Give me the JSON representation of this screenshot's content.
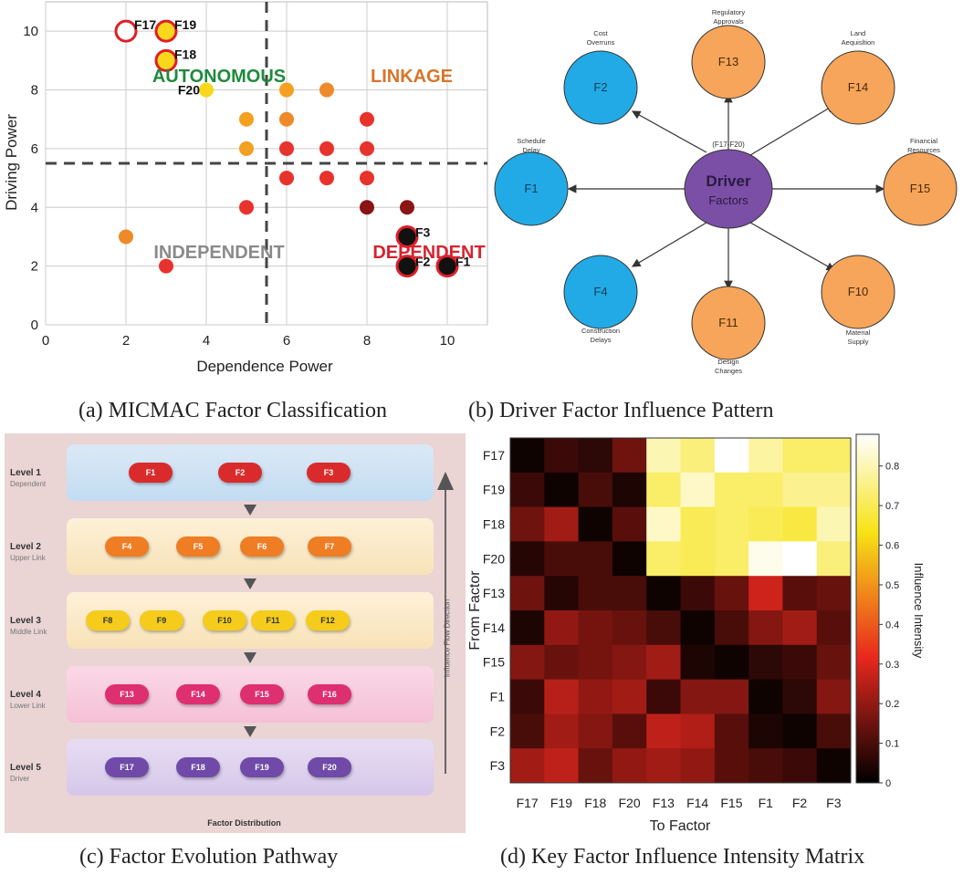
{
  "colors": {
    "red": "#e8322c",
    "orange": "#ef8a2a",
    "yellow": "#f7d81d",
    "amber": "#f4a020",
    "darkred": "#8b1414",
    "black": "#111111",
    "blue": "#22aae6",
    "purple": "#7b4fa6",
    "pink": "#e6337a",
    "green": "#1f8a3d",
    "linkage": "#d8742a",
    "gray": "#888888",
    "dependent": "#d7232f"
  },
  "panel_a": {
    "caption": "(a) MICMAC Factor Classification",
    "quadrants": {
      "autonomous": "AUTONOMOUS",
      "linkage": "LINKAGE",
      "independent": "INDEPENDENT",
      "dependent": "DEPENDENT"
    }
  },
  "panel_b": {
    "caption": "(b) Driver Factor Influence Pattern",
    "center": {
      "title": "Driver",
      "subtitle": "Factors",
      "note": "(F17-F20)"
    },
    "nodes": [
      {
        "id": "F2",
        "label": "Cost\nOverruns",
        "color": "blue"
      },
      {
        "id": "F13",
        "label": "Regulatory\nApprovals",
        "color": "orange"
      },
      {
        "id": "F14",
        "label": "Land\nAequisltion",
        "color": "orange"
      },
      {
        "id": "F15",
        "label": "Financial\nResources",
        "color": "orange"
      },
      {
        "id": "F10",
        "label": "Material\nSupply",
        "color": "orange"
      },
      {
        "id": "F11",
        "label": "Design\nChanges",
        "color": "orange"
      },
      {
        "id": "F4",
        "label": "Construction\nDelays",
        "color": "blue"
      },
      {
        "id": "F1",
        "label": "Schedule\nDelay",
        "color": "blue"
      }
    ]
  },
  "panel_c": {
    "caption": "(c) Factor Evolution Pathway",
    "footer": "Factor Distribution",
    "flow_label": "Influence Flow Direction",
    "levels": [
      {
        "name": "Level 1",
        "sub": "Dependent",
        "factors": [
          "F1",
          "F2",
          "F3"
        ]
      },
      {
        "name": "Level 2",
        "sub": "Upper Link",
        "factors": [
          "F4",
          "F5",
          "F6",
          "F7"
        ]
      },
      {
        "name": "Level 3",
        "sub": "Middle Link",
        "factors": [
          "F8",
          "F9",
          "F10",
          "F11",
          "F12"
        ]
      },
      {
        "name": "Level 4",
        "sub": "Lower Link",
        "factors": [
          "F13",
          "F14",
          "F15",
          "F16"
        ]
      },
      {
        "name": "Level 5",
        "sub": "Driver",
        "factors": [
          "F17",
          "F18",
          "F19",
          "F20"
        ]
      }
    ]
  },
  "panel_d": {
    "caption": "(d) Key Factor Influence Intensity Matrix"
  },
  "chart_data": [
    {
      "type": "scatter",
      "title": "",
      "xlabel": "Dependence Power",
      "ylabel": "Driving Power",
      "xlim": [
        0,
        11
      ],
      "ylim": [
        0,
        11
      ],
      "xticks": [
        0,
        2,
        4,
        6,
        8,
        10
      ],
      "yticks": [
        0,
        2,
        4,
        6,
        8,
        10
      ],
      "thresholds": {
        "x": 5.5,
        "y": 5.5
      },
      "grid": true,
      "points": [
        {
          "x": 2,
          "y": 10,
          "label": "F17",
          "color": "white",
          "ring": true
        },
        {
          "x": 3,
          "y": 10,
          "label": "F19",
          "color": "yellow",
          "ring": true
        },
        {
          "x": 3,
          "y": 9,
          "label": "F18",
          "color": "yellow",
          "ring": true
        },
        {
          "x": 4,
          "y": 8,
          "label": "F20",
          "color": "yellow"
        },
        {
          "x": 6,
          "y": 8,
          "color": "amber"
        },
        {
          "x": 7,
          "y": 8,
          "color": "orange"
        },
        {
          "x": 5,
          "y": 7,
          "color": "amber"
        },
        {
          "x": 6,
          "y": 7,
          "color": "orange"
        },
        {
          "x": 8,
          "y": 7,
          "color": "red"
        },
        {
          "x": 5,
          "y": 6,
          "color": "amber"
        },
        {
          "x": 6,
          "y": 6,
          "color": "red"
        },
        {
          "x": 7,
          "y": 6,
          "color": "red"
        },
        {
          "x": 8,
          "y": 6,
          "color": "red"
        },
        {
          "x": 6,
          "y": 5,
          "color": "red"
        },
        {
          "x": 7,
          "y": 5,
          "color": "red"
        },
        {
          "x": 8,
          "y": 5,
          "color": "red"
        },
        {
          "x": 5,
          "y": 4,
          "color": "red"
        },
        {
          "x": 8,
          "y": 4,
          "color": "darkred"
        },
        {
          "x": 9,
          "y": 4,
          "color": "darkred"
        },
        {
          "x": 2,
          "y": 3,
          "color": "orange"
        },
        {
          "x": 3,
          "y": 2,
          "color": "red"
        },
        {
          "x": 9,
          "y": 3,
          "label": "F3",
          "color": "black",
          "ring": true
        },
        {
          "x": 9,
          "y": 2,
          "label": "F2",
          "color": "black",
          "ring": true
        },
        {
          "x": 10,
          "y": 2,
          "label": "F1",
          "color": "black",
          "ring": true
        }
      ]
    },
    {
      "type": "heatmap",
      "xlabel": "To Factor",
      "ylabel": "From Factor",
      "colorbar_label": "Influence Intensity",
      "colorbar_ticks": [
        0,
        0.1,
        0.2,
        0.3,
        0.4,
        0.5,
        0.6,
        0.7,
        0.8
      ],
      "vmin": 0,
      "vmax": 0.88,
      "rows": [
        "F17",
        "F19",
        "F18",
        "F20",
        "F13",
        "F14",
        "F15",
        "F1",
        "F2",
        "F3"
      ],
      "cols": [
        "F17",
        "F19",
        "F18",
        "F20",
        "F13",
        "F14",
        "F15",
        "F1",
        "F2",
        "F3"
      ],
      "values": [
        [
          0.02,
          0.08,
          0.06,
          0.15,
          0.8,
          0.74,
          0.88,
          0.78,
          0.72,
          0.72
        ],
        [
          0.08,
          0.02,
          0.1,
          0.04,
          0.72,
          0.82,
          0.72,
          0.72,
          0.76,
          0.76
        ],
        [
          0.15,
          0.22,
          0.02,
          0.12,
          0.82,
          0.7,
          0.72,
          0.7,
          0.68,
          0.8
        ],
        [
          0.05,
          0.1,
          0.1,
          0.02,
          0.72,
          0.7,
          0.72,
          0.86,
          0.88,
          0.74
        ],
        [
          0.15,
          0.05,
          0.1,
          0.1,
          0.02,
          0.08,
          0.14,
          0.28,
          0.12,
          0.14
        ],
        [
          0.04,
          0.2,
          0.16,
          0.14,
          0.1,
          0.02,
          0.1,
          0.18,
          0.22,
          0.12
        ],
        [
          0.18,
          0.14,
          0.16,
          0.18,
          0.22,
          0.04,
          0.02,
          0.06,
          0.08,
          0.14
        ],
        [
          0.08,
          0.25,
          0.2,
          0.22,
          0.08,
          0.18,
          0.18,
          0.02,
          0.06,
          0.18
        ],
        [
          0.1,
          0.22,
          0.18,
          0.12,
          0.26,
          0.24,
          0.12,
          0.04,
          0.02,
          0.1
        ],
        [
          0.22,
          0.26,
          0.14,
          0.2,
          0.22,
          0.2,
          0.12,
          0.1,
          0.08,
          0.02
        ]
      ]
    }
  ]
}
